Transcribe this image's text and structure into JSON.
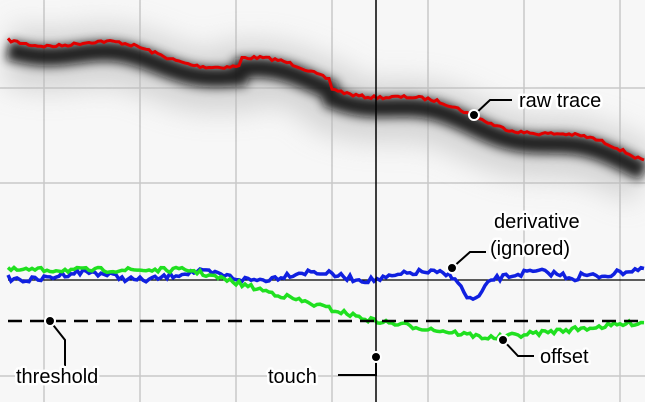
{
  "labels": {
    "raw_trace": "raw trace",
    "derivative": "derivative",
    "ignored": "(ignored)",
    "threshold": "threshold",
    "touch": "touch",
    "offset": "offset"
  }
}
